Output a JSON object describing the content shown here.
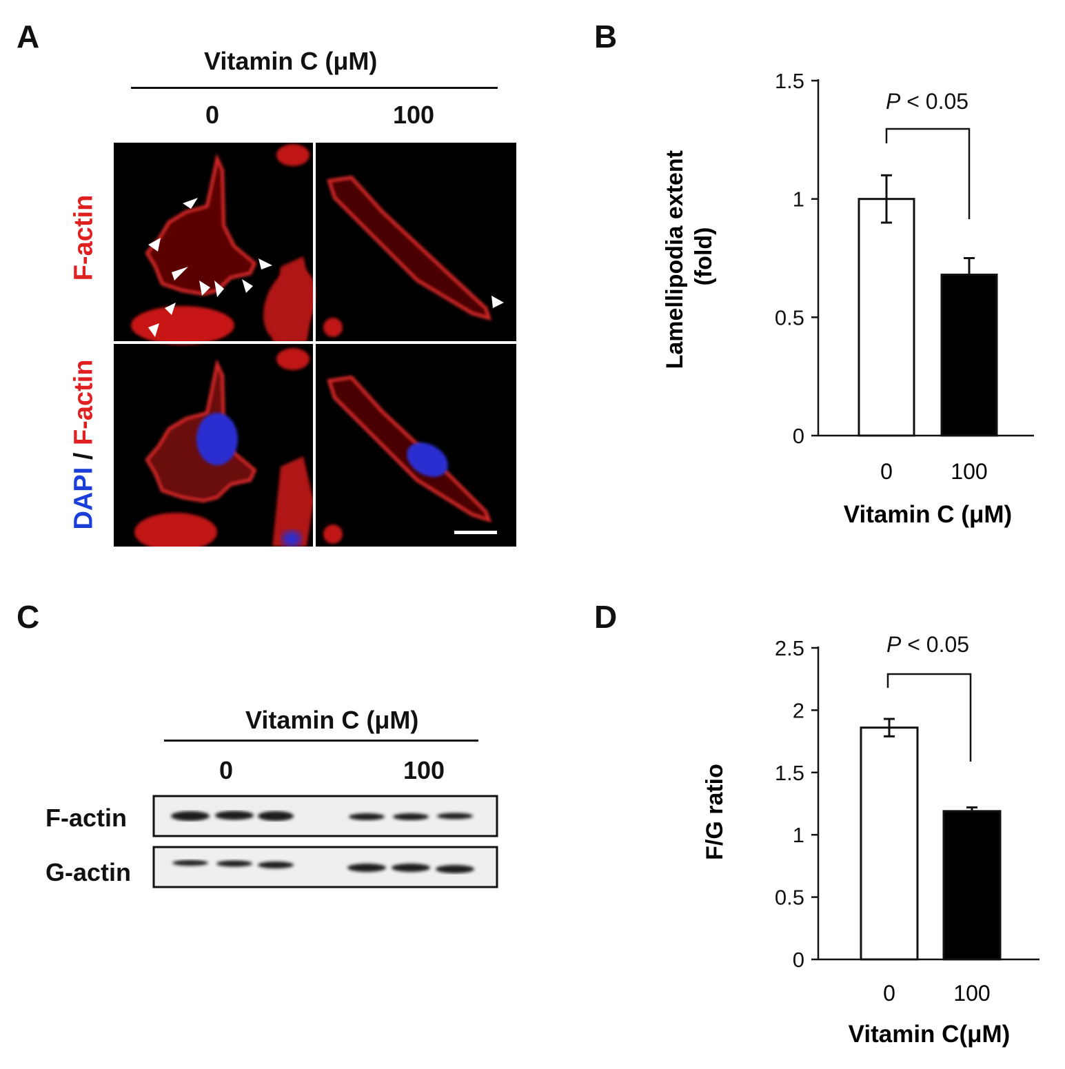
{
  "panel_a": {
    "letter": "A",
    "header": "Vitamin C (μM)",
    "columns": [
      "0",
      "100"
    ],
    "row_label_top": "F-actin",
    "row_label_bottom": {
      "dapi": "DAPI",
      "sep": " / ",
      "factin": "F-actin"
    },
    "colors": {
      "factin": "#e02020",
      "dapi": "#1a3fd8"
    }
  },
  "panel_b": {
    "letter": "B",
    "pvalue": {
      "p": "P",
      "rest": " < 0.05"
    },
    "yticks": [
      "0",
      "0.5",
      "1",
      "1.5"
    ],
    "ylabel_line1": "Lamellipodia extent",
    "ylabel_line2": "(fold)",
    "xlabel": "Vitamin C (μM)",
    "xticks": [
      "0",
      "100"
    ]
  },
  "panel_c": {
    "letter": "C",
    "header": "Vitamin C (μM)",
    "columns": [
      "0",
      "100"
    ],
    "rows": [
      "F-actin",
      "G-actin"
    ]
  },
  "panel_d": {
    "letter": "D",
    "pvalue": {
      "p": "P",
      "rest": " < 0.05"
    },
    "yticks": [
      "0",
      "0.5",
      "1",
      "1.5",
      "2",
      "2.5"
    ],
    "ylabel": "F/G ratio",
    "xlabel": "Vitamin C(μM)",
    "xticks": [
      "0",
      "100"
    ]
  },
  "chart_data": [
    {
      "type": "bar",
      "panel": "B",
      "categories": [
        "0",
        "100"
      ],
      "values": [
        1.0,
        0.68
      ],
      "errors": [
        0.1,
        0.07
      ],
      "bar_fill": [
        "#ffffff",
        "#000000"
      ],
      "ylim": [
        0,
        1.5
      ],
      "ylabel": "Lamellipodia extent (fold)",
      "xlabel": "Vitamin C (μM)",
      "grid": false
    },
    {
      "type": "bar",
      "panel": "D",
      "categories": [
        "0",
        "100"
      ],
      "values": [
        1.86,
        1.19
      ],
      "errors": [
        0.07,
        0.03
      ],
      "bar_fill": [
        "#ffffff",
        "#000000"
      ],
      "ylim": [
        0,
        2.5
      ],
      "ylabel": "F/G ratio",
      "xlabel": "Vitamin C(μM)",
      "grid": false
    }
  ]
}
